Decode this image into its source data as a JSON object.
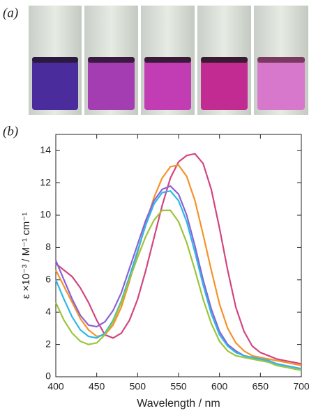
{
  "panel_a": "(a)",
  "chart_data": {
    "type": "line",
    "panel": "(b)",
    "x_label": "Wavelength / nm",
    "y_label": "ε ×10⁻³ / M⁻¹ cm⁻¹",
    "x": [
      400,
      410,
      420,
      430,
      440,
      450,
      460,
      470,
      480,
      490,
      500,
      510,
      520,
      530,
      540,
      550,
      560,
      570,
      580,
      590,
      600,
      610,
      620,
      630,
      640,
      650,
      660,
      670,
      680,
      690,
      700
    ],
    "series": [
      {
        "color": "#d2457e",
        "values": [
          7.0,
          6.6,
          6.2,
          5.5,
          4.6,
          3.5,
          2.6,
          2.4,
          2.7,
          3.5,
          4.8,
          6.6,
          8.6,
          10.6,
          12.3,
          13.3,
          13.7,
          13.8,
          13.2,
          11.6,
          9.2,
          6.6,
          4.3,
          2.8,
          1.9,
          1.5,
          1.3,
          1.1,
          1.0,
          0.9,
          0.8
        ]
      },
      {
        "color": "#f5922a",
        "values": [
          6.6,
          5.6,
          4.6,
          3.6,
          2.9,
          2.5,
          2.6,
          3.2,
          4.3,
          5.9,
          7.7,
          9.5,
          11.1,
          12.3,
          13.0,
          13.1,
          12.4,
          10.9,
          8.8,
          6.6,
          4.5,
          3.0,
          2.1,
          1.6,
          1.3,
          1.2,
          1.1,
          1.0,
          0.9,
          0.8,
          0.7
        ]
      },
      {
        "color": "#8a62d4",
        "values": [
          7.2,
          6.0,
          4.8,
          3.8,
          3.2,
          3.1,
          3.4,
          4.1,
          5.2,
          6.7,
          8.2,
          9.7,
          10.9,
          11.6,
          11.8,
          11.3,
          10.0,
          8.1,
          6.0,
          4.2,
          2.8,
          2.0,
          1.6,
          1.3,
          1.2,
          1.1,
          1.0,
          0.8,
          0.7,
          0.6,
          0.5
        ]
      },
      {
        "color": "#2cb8ea",
        "values": [
          6.0,
          4.8,
          3.7,
          2.9,
          2.5,
          2.4,
          2.7,
          3.5,
          4.7,
          6.2,
          7.8,
          9.4,
          10.7,
          11.4,
          11.5,
          10.9,
          9.6,
          7.7,
          5.7,
          3.9,
          2.6,
          1.9,
          1.5,
          1.3,
          1.2,
          1.1,
          1.0,
          0.8,
          0.7,
          0.6,
          0.5
        ]
      },
      {
        "color": "#9cc43c",
        "values": [
          4.6,
          3.5,
          2.7,
          2.2,
          2.0,
          2.1,
          2.6,
          3.4,
          4.6,
          6.0,
          7.4,
          8.7,
          9.7,
          10.3,
          10.3,
          9.6,
          8.3,
          6.6,
          4.8,
          3.3,
          2.2,
          1.6,
          1.3,
          1.2,
          1.1,
          1.0,
          0.9,
          0.7,
          0.6,
          0.5,
          0.4
        ]
      }
    ],
    "xlim": [
      400,
      700
    ],
    "xticks": [
      400,
      450,
      500,
      550,
      600,
      650,
      700
    ],
    "ylim": [
      0,
      15
    ],
    "yticks": [
      0,
      2,
      4,
      6,
      8,
      10,
      12,
      14
    ],
    "grid": false
  }
}
